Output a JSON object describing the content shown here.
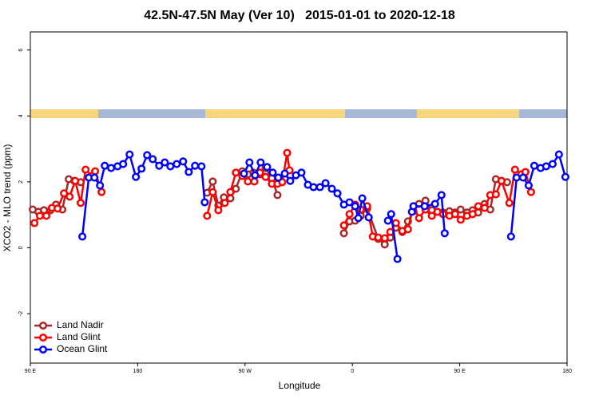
{
  "chart_data": {
    "type": "line",
    "title": "42.5N-47.5N May (Ver 10)   2015-01-01 to 2020-12-18",
    "xlabel": "Longitude",
    "ylabel": "XCO2 - MLO trend (ppm)",
    "xlim": [
      90,
      540
    ],
    "ylim": [
      -3.5,
      6.55
    ],
    "xticks": [
      {
        "value": 90,
        "label": "90 E"
      },
      180,
      {
        "value": 270,
        "label": "90 W"
      },
      {
        "value": 360,
        "label": "0"
      },
      {
        "value": 450,
        "label": "90 E"
      },
      {
        "value": 540,
        "label": "180"
      }
    ],
    "yticks": [
      -2,
      0,
      2,
      4,
      6
    ],
    "legend": "bottomleft",
    "series": [
      {
        "name": "Land Nadir",
        "color": "#a52a2a",
        "x": [
          92.0,
          96.7,
          101.4,
          106.8,
          111.5,
          116.8,
          122.2,
          126.9,
          132.2,
          null,
          238.2,
          242.9,
          247.6,
          252.3,
          257.7,
          262.3,
          267.7,
          272.4,
          277.1,
          282.5,
          287.2,
          292.5,
          297.2,
          null,
          352.9,
          357.6,
          362.3,
          367.0,
          372.4,
          381.7,
          387.1,
          391.8,
          396.5,
          401.9,
          406.6,
          411.2,
          415.9,
          421.3,
          426.6,
          431.3,
          436.0,
          441.4,
          446.1,
          450.8,
          456.1,
          460.8,
          465.5,
          470.9,
          475.6,
          480.3,
          485.0,
          489.7
        ],
        "values": [
          1.16,
          1.09,
          1.14,
          1.14,
          1.31,
          1.16,
          2.08,
          2.03,
          1.99,
          null,
          1.67,
          2.01,
          1.28,
          1.53,
          1.5,
          1.79,
          2.32,
          2.23,
          2.28,
          2.23,
          2.42,
          2.11,
          1.6,
          null,
          0.44,
          0.8,
          0.82,
          0.97,
          1.19,
          0.27,
          0.1,
          0.31,
          0.61,
          0.48,
          0.8,
          1.11,
          1.33,
          1.43,
          1.14,
          1.09,
          1.07,
          1.11,
          1.07,
          1.16,
          1.07,
          1.14,
          1.07,
          1.33,
          1.16,
          2.08,
          2.03,
          1.99
        ]
      },
      {
        "name": "Land Glint",
        "color": "#ff0000",
        "x": [
          93.4,
          98.0,
          103.4,
          108.1,
          112.8,
          118.2,
          122.9,
          127.6,
          132.2,
          136.3,
          141.6,
          144.3,
          149.7,
          null,
          238.2,
          242.9,
          247.6,
          253.0,
          257.7,
          262.3,
          267.7,
          272.4,
          277.8,
          282.5,
          287.2,
          292.5,
          297.2,
          301.2,
          305.3,
          307.3,
          null,
          352.9,
          357.6,
          362.3,
          367.0,
          372.4,
          377.1,
          381.7,
          387.1,
          391.8,
          396.5,
          401.9,
          406.6,
          411.2,
          415.9,
          421.3,
          426.6,
          431.3,
          436.0,
          441.4,
          446.1,
          450.8,
          456.1,
          460.8,
          465.5,
          470.9,
          475.6,
          480.3,
          485.0,
          491.6,
          496.3,
          501.7,
          505.1,
          509.8
        ],
        "values": [
          0.75,
          0.97,
          0.97,
          1.21,
          1.19,
          1.65,
          1.55,
          2.03,
          1.36,
          2.37,
          2.18,
          2.32,
          1.69,
          null,
          0.97,
          1.69,
          1.14,
          1.36,
          1.69,
          2.28,
          2.18,
          2.01,
          2.01,
          2.28,
          2.15,
          1.94,
          1.94,
          1.99,
          2.88,
          2.35,
          null,
          0.68,
          1.02,
          1.31,
          1.16,
          1.26,
          0.34,
          0.31,
          0.29,
          0.48,
          0.75,
          0.51,
          0.56,
          1.26,
          0.9,
          1.16,
          0.97,
          1.09,
          1.02,
          0.97,
          1.02,
          0.85,
          0.97,
          1.02,
          1.26,
          1.21,
          1.6,
          1.62,
          2.03,
          1.36,
          2.37,
          2.23,
          2.3,
          1.69
        ]
      },
      {
        "name": "Ocean Glint",
        "color": "#0000ff",
        "x": [
          133.6,
          139.0,
          143.7,
          148.4,
          152.4,
          157.7,
          163.1,
          167.8,
          173.2,
          178.5,
          183.2,
          187.9,
          192.6,
          198.0,
          202.7,
          207.4,
          212.7,
          218.1,
          222.8,
          228.1,
          233.5,
          236.2,
          null,
          269.1,
          273.7,
          278.4,
          283.1,
          288.5,
          293.2,
          297.9,
          303.3,
          307.9,
          312.6,
          317.3,
          322.7,
          327.4,
          332.8,
          337.5,
          342.8,
          347.5,
          352.9,
          357.6,
          362.3,
          365.0,
          368.3,
          373.7,
          null,
          389.8,
          392.5,
          397.8,
          null,
          409.9,
          411.2,
          420.6,
          429.3,
          434.7,
          437.4,
          null,
          493.0,
          497.7,
          503.1,
          507.8,
          512.5,
          517.8,
          522.5,
          527.9,
          533.2,
          538.6
        ],
        "values": [
          0.34,
          2.13,
          2.13,
          1.89,
          2.49,
          2.42,
          2.47,
          2.54,
          2.83,
          2.15,
          2.4,
          2.81,
          2.69,
          2.49,
          2.59,
          2.47,
          2.54,
          2.62,
          2.3,
          2.49,
          2.47,
          1.38,
          null,
          2.25,
          2.59,
          2.2,
          2.59,
          2.45,
          2.28,
          2.13,
          2.25,
          2.03,
          2.2,
          2.28,
          1.91,
          1.84,
          1.84,
          1.96,
          1.79,
          1.65,
          1.31,
          1.38,
          1.26,
          0.9,
          1.5,
          0.92,
          null,
          0.82,
          1.02,
          -0.34,
          null,
          1.09,
          1.26,
          1.26,
          1.33,
          1.6,
          0.44,
          null,
          0.34,
          2.13,
          2.13,
          1.89,
          2.49,
          2.42,
          2.47,
          2.54,
          2.83,
          2.15
        ]
      }
    ]
  }
}
